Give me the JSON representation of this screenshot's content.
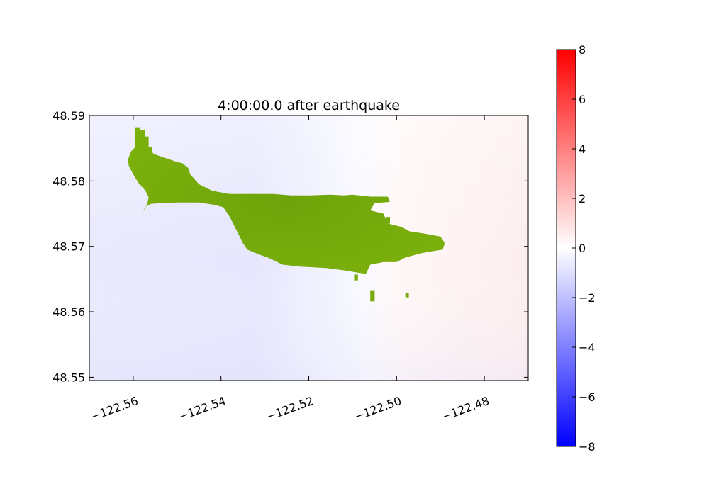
{
  "chart_data": {
    "type": "heatmap",
    "title": "4:00:00.0 after earthquake",
    "xlabel": "",
    "ylabel": "",
    "xlim": [
      -122.57,
      -122.47
    ],
    "ylim": [
      48.5495,
      48.59
    ],
    "x_ticks": [
      -122.56,
      -122.54,
      -122.52,
      -122.5,
      -122.48
    ],
    "x_tick_labels": [
      "−122.56",
      "−122.54",
      "−122.52",
      "−122.50",
      "−122.48"
    ],
    "y_ticks": [
      48.55,
      48.56,
      48.57,
      48.58,
      48.59
    ],
    "y_tick_labels": [
      "48.55",
      "48.56",
      "48.57",
      "48.58",
      "48.59"
    ],
    "colorbar": {
      "min": -8,
      "max": 8,
      "ticks": [
        -8,
        -6,
        -4,
        -2,
        0,
        2,
        4,
        6,
        8
      ],
      "tick_labels": [
        "−8",
        "−6",
        "−4",
        "−2",
        "0",
        "2",
        "4",
        "6",
        "8"
      ],
      "colormap": [
        "#0000ff",
        "#ffffff",
        "#ff0000"
      ]
    },
    "field_samples": [
      {
        "x": -122.565,
        "y": 48.585,
        "value": -0.4
      },
      {
        "x": -122.565,
        "y": 48.553,
        "value": -0.5
      },
      {
        "x": -122.53,
        "y": 48.555,
        "value": -0.7
      },
      {
        "x": -122.5,
        "y": 48.585,
        "value": 0.0
      },
      {
        "x": -122.48,
        "y": 48.555,
        "value": 0.3
      },
      {
        "x": -122.475,
        "y": 48.575,
        "value": 0.2
      }
    ],
    "land_color": "#77ab0a",
    "land_regions": [
      {
        "name": "island",
        "outline": [
          [
            -122.5595,
            48.5882
          ],
          [
            -122.5585,
            48.5882
          ],
          [
            -122.5585,
            48.5878
          ],
          [
            -122.5573,
            48.5878
          ],
          [
            -122.5573,
            48.5868
          ],
          [
            -122.5565,
            48.5868
          ],
          [
            -122.5565,
            48.5852
          ],
          [
            -122.5558,
            48.5852
          ],
          [
            -122.5555,
            48.5842
          ],
          [
            -122.554,
            48.5838
          ],
          [
            -122.5522,
            48.5834
          ],
          [
            -122.5505,
            48.583
          ],
          [
            -122.5488,
            48.5827
          ],
          [
            -122.5475,
            48.582
          ],
          [
            -122.547,
            48.581
          ],
          [
            -122.545,
            48.5795
          ],
          [
            -122.542,
            48.5785
          ],
          [
            -122.538,
            48.578
          ],
          [
            -122.533,
            48.578
          ],
          [
            -122.528,
            48.578
          ],
          [
            -122.524,
            48.5778
          ],
          [
            -122.52,
            48.5778
          ],
          [
            -122.515,
            48.5779
          ],
          [
            -122.512,
            48.5778
          ],
          [
            -122.51,
            48.5779
          ],
          [
            -122.506,
            48.5776
          ],
          [
            -122.502,
            48.5776
          ],
          [
            -122.5015,
            48.5768
          ],
          [
            -122.505,
            48.5766
          ],
          [
            -122.506,
            48.5755
          ],
          [
            -122.503,
            48.575
          ],
          [
            -122.502,
            48.5735
          ],
          [
            -122.499,
            48.573
          ],
          [
            -122.497,
            48.5723
          ],
          [
            -122.494,
            48.572
          ],
          [
            -122.49,
            48.5715
          ],
          [
            -122.489,
            48.5705
          ],
          [
            -122.4895,
            48.5695
          ],
          [
            -122.494,
            48.569
          ],
          [
            -122.498,
            48.5683
          ],
          [
            -122.5,
            48.5676
          ],
          [
            -122.503,
            48.5676
          ],
          [
            -122.506,
            48.5672
          ],
          [
            -122.507,
            48.5658
          ],
          [
            -122.509,
            48.566
          ],
          [
            -122.5115,
            48.5663
          ],
          [
            -122.516,
            48.5667
          ],
          [
            -122.522,
            48.5669
          ],
          [
            -122.526,
            48.5672
          ],
          [
            -122.529,
            48.5682
          ],
          [
            -122.5315,
            48.5688
          ],
          [
            -122.534,
            48.5695
          ],
          [
            -122.535,
            48.5705
          ],
          [
            -122.5365,
            48.5725
          ],
          [
            -122.538,
            48.5745
          ],
          [
            -122.5395,
            48.576
          ],
          [
            -122.542,
            48.5764
          ],
          [
            -122.545,
            48.5767
          ],
          [
            -122.55,
            48.5767
          ],
          [
            -122.554,
            48.5766
          ],
          [
            -122.556,
            48.5765
          ],
          [
            -122.5573,
            48.576
          ],
          [
            -122.5578,
            48.5752
          ],
          [
            -122.5568,
            48.5765
          ],
          [
            -122.5565,
            48.5775
          ],
          [
            -122.5572,
            48.5785
          ],
          [
            -122.5588,
            48.5797
          ],
          [
            -122.56,
            48.581
          ],
          [
            -122.561,
            48.5823
          ],
          [
            -122.5612,
            48.5833
          ],
          [
            -122.5605,
            48.5845
          ],
          [
            -122.5595,
            48.5852
          ],
          [
            -122.5595,
            48.5882
          ]
        ]
      },
      {
        "name": "islet-1",
        "outline": [
          [
            -122.506,
            48.5633
          ],
          [
            -122.505,
            48.5633
          ],
          [
            -122.505,
            48.5616
          ],
          [
            -122.506,
            48.5616
          ]
        ]
      },
      {
        "name": "islet-2",
        "outline": [
          [
            -122.498,
            48.5629
          ],
          [
            -122.4972,
            48.5629
          ],
          [
            -122.4972,
            48.5622
          ],
          [
            -122.498,
            48.5622
          ]
        ]
      },
      {
        "name": "islet-3",
        "outline": [
          [
            -122.5025,
            48.5745
          ],
          [
            -122.5015,
            48.5745
          ],
          [
            -122.5015,
            48.5735
          ],
          [
            -122.5025,
            48.5735
          ]
        ]
      },
      {
        "name": "islet-4",
        "outline": [
          [
            -122.5095,
            48.5657
          ],
          [
            -122.5088,
            48.5657
          ],
          [
            -122.5088,
            48.5648
          ],
          [
            -122.5095,
            48.5648
          ]
        ]
      }
    ]
  }
}
